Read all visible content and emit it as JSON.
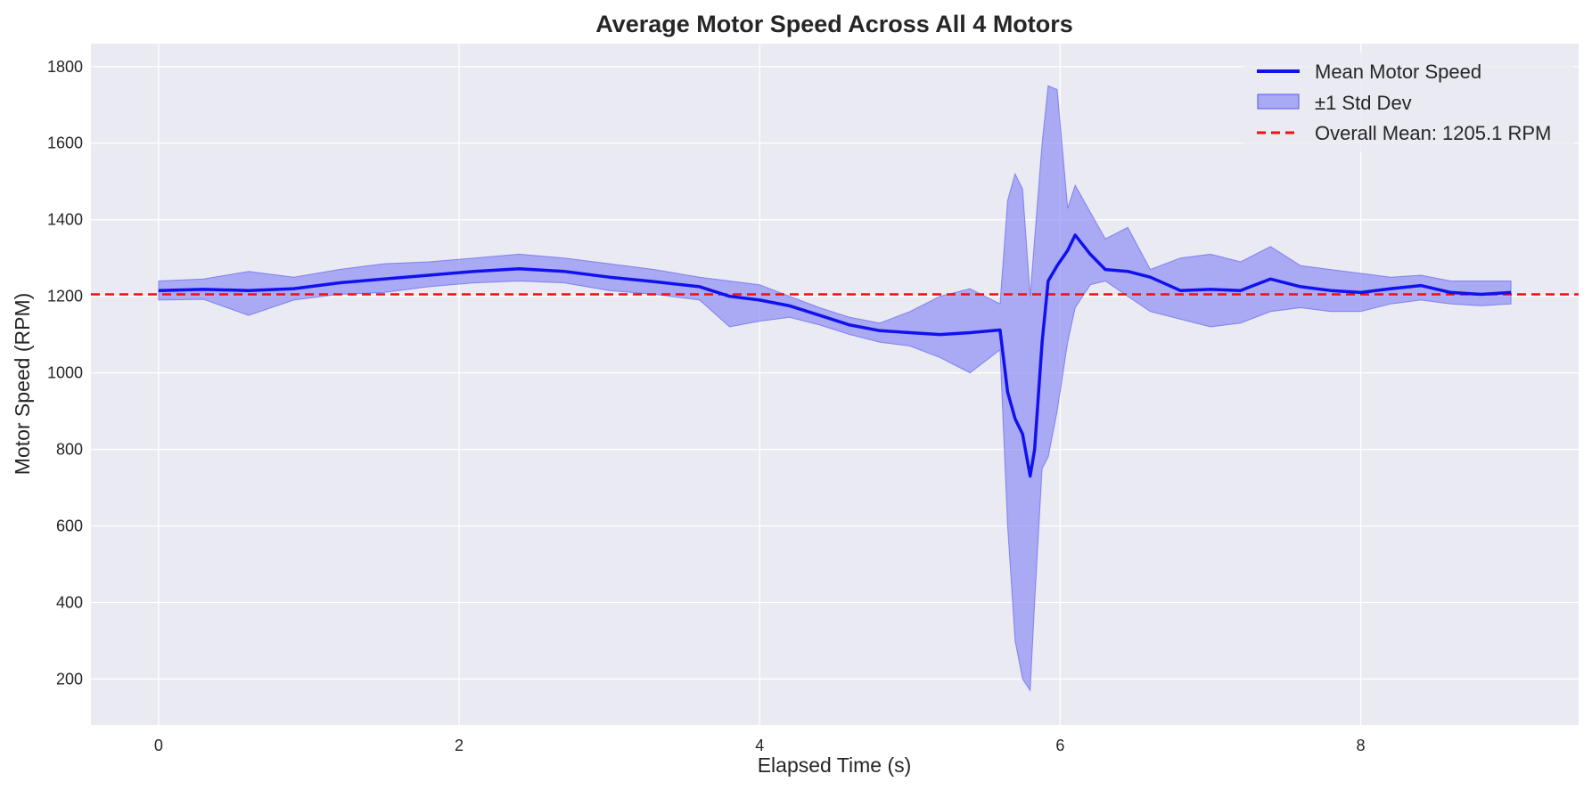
{
  "chart_data": {
    "type": "line",
    "title": "Average Motor Speed Across All 4 Motors",
    "xlabel": "Elapsed Time (s)",
    "ylabel": "Motor Speed (RPM)",
    "xlim": [
      -0.45,
      9.45
    ],
    "ylim": [
      80,
      1860
    ],
    "xticks": [
      0,
      2,
      4,
      6,
      8
    ],
    "yticks": [
      200,
      400,
      600,
      800,
      1000,
      1200,
      1400,
      1600,
      1800
    ],
    "grid": true,
    "legend_position": "top-right",
    "colors": {
      "background": "#eaeaf2",
      "grid": "#ffffff",
      "mean_line": "#1111ee",
      "band_fill": "#8a8af5",
      "band_edge": "#5555ee",
      "overall_mean": "#ee1111"
    },
    "overall_mean": 1205.1,
    "legend": [
      {
        "label": "Mean Motor Speed",
        "kind": "line"
      },
      {
        "label": "±1 Std Dev",
        "kind": "band"
      },
      {
        "label": "Overall Mean: 1205.1 RPM",
        "kind": "dashed"
      }
    ],
    "series": [
      {
        "name": "Mean Motor Speed",
        "x": [
          0,
          0.3,
          0.6,
          0.9,
          1.2,
          1.5,
          1.8,
          2.1,
          2.4,
          2.7,
          3.0,
          3.3,
          3.6,
          3.8,
          4.0,
          4.2,
          4.4,
          4.6,
          4.8,
          5.0,
          5.2,
          5.4,
          5.6,
          5.65,
          5.7,
          5.75,
          5.8,
          5.83,
          5.88,
          5.92,
          5.98,
          6.05,
          6.1,
          6.2,
          6.3,
          6.45,
          6.6,
          6.8,
          7.0,
          7.2,
          7.4,
          7.6,
          7.8,
          8.0,
          8.2,
          8.4,
          8.6,
          8.8,
          9.0
        ],
        "y": [
          1215,
          1218,
          1215,
          1220,
          1235,
          1245,
          1255,
          1265,
          1272,
          1265,
          1250,
          1238,
          1225,
          1200,
          1190,
          1175,
          1150,
          1125,
          1110,
          1105,
          1100,
          1105,
          1112,
          950,
          880,
          840,
          730,
          800,
          1080,
          1240,
          1280,
          1320,
          1360,
          1310,
          1270,
          1265,
          1250,
          1215,
          1218,
          1215,
          1245,
          1225,
          1215,
          1210,
          1220,
          1228,
          1210,
          1205,
          1210
        ]
      },
      {
        "name": "±1 Std Dev",
        "x": [
          0,
          0.3,
          0.6,
          0.9,
          1.2,
          1.5,
          1.8,
          2.1,
          2.4,
          2.7,
          3.0,
          3.3,
          3.6,
          3.8,
          4.0,
          4.2,
          4.4,
          4.6,
          4.8,
          5.0,
          5.2,
          5.4,
          5.6,
          5.65,
          5.7,
          5.75,
          5.8,
          5.83,
          5.88,
          5.92,
          5.98,
          6.05,
          6.1,
          6.2,
          6.3,
          6.45,
          6.6,
          6.8,
          7.0,
          7.2,
          7.4,
          7.6,
          7.8,
          8.0,
          8.2,
          8.4,
          8.6,
          8.8,
          9.0
        ],
        "upper": [
          1240,
          1245,
          1265,
          1250,
          1270,
          1285,
          1290,
          1300,
          1310,
          1300,
          1285,
          1270,
          1250,
          1240,
          1230,
          1200,
          1170,
          1145,
          1130,
          1160,
          1200,
          1220,
          1180,
          1450,
          1520,
          1480,
          1200,
          1350,
          1600,
          1750,
          1740,
          1430,
          1490,
          1420,
          1350,
          1380,
          1270,
          1300,
          1310,
          1290,
          1330,
          1280,
          1270,
          1260,
          1250,
          1255,
          1240,
          1240,
          1240
        ],
        "lower": [
          1190,
          1192,
          1150,
          1190,
          1205,
          1210,
          1225,
          1235,
          1240,
          1235,
          1215,
          1205,
          1190,
          1120,
          1135,
          1145,
          1125,
          1100,
          1080,
          1070,
          1040,
          1000,
          1060,
          600,
          300,
          200,
          170,
          400,
          750,
          780,
          900,
          1080,
          1170,
          1230,
          1240,
          1200,
          1160,
          1140,
          1120,
          1130,
          1160,
          1170,
          1160,
          1160,
          1180,
          1190,
          1180,
          1175,
          1180
        ]
      }
    ]
  }
}
